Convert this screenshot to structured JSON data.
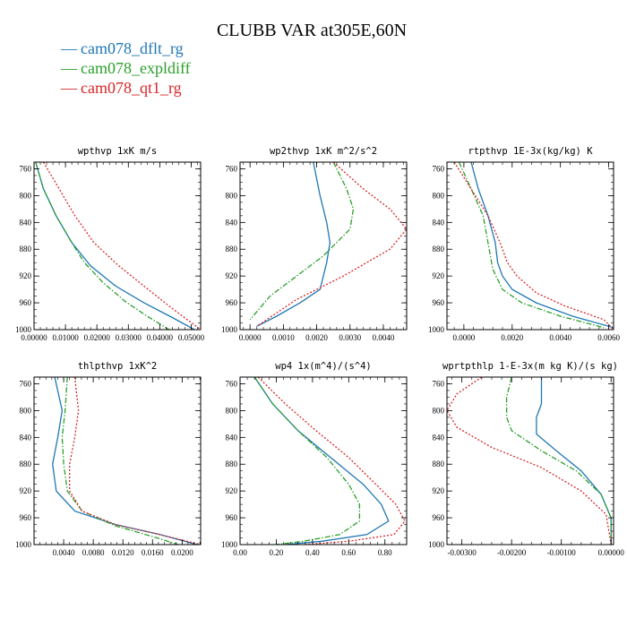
{
  "figure": {
    "title": "CLUBB VAR at305E,60N",
    "legend": [
      {
        "label": "cam078_dflt_rg",
        "color": "#1f77b4"
      },
      {
        "label": "cam078_expldiff",
        "color": "#2ca02c"
      },
      {
        "label": "cam078_qt1_rg",
        "color": "#d62728"
      }
    ]
  },
  "chart_data": [
    {
      "type": "line",
      "title": "wpthvp  1xK m/s",
      "xlim": [
        0,
        0.053
      ],
      "ylim": [
        1000,
        750
      ],
      "xticks": [
        0,
        0.01,
        0.02,
        0.03,
        0.04,
        0.05
      ],
      "xtick_labels": [
        "0.00000",
        "0.01000",
        "0.02000",
        "0.03000",
        "0.04000",
        "0.05000"
      ],
      "yticks": [
        760,
        800,
        840,
        880,
        920,
        960,
        1000
      ],
      "ytick_labels": [
        "760",
        "800",
        "840",
        "880",
        "920",
        "960",
        "1000"
      ],
      "series": [
        {
          "color": "#1f77b4",
          "dash": "",
          "x": [
            0.0005,
            0.003,
            0.007,
            0.012,
            0.018,
            0.026,
            0.035,
            0.044,
            0.051
          ],
          "y": [
            750,
            790,
            830,
            870,
            905,
            935,
            960,
            982,
            1000
          ]
        },
        {
          "color": "#2ca02c",
          "dash": "6,2,1.5,2",
          "x": [
            0.0005,
            0.003,
            0.007,
            0.012,
            0.016,
            0.022,
            0.029,
            0.036,
            0.043
          ],
          "y": [
            750,
            790,
            830,
            870,
            900,
            930,
            958,
            980,
            1000
          ]
        },
        {
          "color": "#d62728",
          "dash": "2,2",
          "x": [
            0.003,
            0.008,
            0.013,
            0.019,
            0.027,
            0.035,
            0.043,
            0.053
          ],
          "y": [
            750,
            790,
            830,
            870,
            905,
            935,
            965,
            1000
          ]
        }
      ]
    },
    {
      "type": "line",
      "title": "wp2thvp  1xK m^2/s^2",
      "xlim": [
        -0.0003,
        0.0047
      ],
      "ylim": [
        1000,
        750
      ],
      "xticks": [
        0,
        0.001,
        0.002,
        0.003,
        0.004
      ],
      "xtick_labels": [
        "0.0000",
        "0.0010",
        "0.0020",
        "0.0030",
        "0.0040"
      ],
      "yticks": [
        760,
        800,
        840,
        880,
        920,
        960,
        1000
      ],
      "ytick_labels": [
        "760",
        "800",
        "840",
        "880",
        "920",
        "960",
        "1000"
      ],
      "series": [
        {
          "color": "#1f77b4",
          "dash": "",
          "x": [
            0.0019,
            0.0021,
            0.0023,
            0.0024,
            0.0023,
            0.0021,
            0.0015,
            0.0008,
            0.0002
          ],
          "y": [
            750,
            800,
            840,
            870,
            900,
            940,
            960,
            980,
            995
          ]
        },
        {
          "color": "#2ca02c",
          "dash": "6,2,1.5,2",
          "x": [
            0.0025,
            0.0029,
            0.0031,
            0.003,
            0.0022,
            0.0014,
            0.0006,
            0.0
          ],
          "y": [
            750,
            790,
            820,
            850,
            890,
            920,
            950,
            985
          ]
        },
        {
          "color": "#d62728",
          "dash": "2,2",
          "x": [
            0.0025,
            0.0034,
            0.0042,
            0.0047,
            0.0042,
            0.0028,
            0.0014,
            0.0002
          ],
          "y": [
            750,
            790,
            820,
            850,
            880,
            920,
            955,
            995
          ]
        }
      ]
    },
    {
      "type": "line",
      "title": "rtpthvp  1E-3x(kg/kg) K",
      "xlim": [
        -0.0007,
        0.0062
      ],
      "ylim": [
        1000,
        750
      ],
      "xticks": [
        0,
        0.002,
        0.004,
        0.006
      ],
      "xtick_labels": [
        "0.0000",
        "0.0020",
        "0.0040",
        "0.0060"
      ],
      "yticks": [
        760,
        800,
        840,
        880,
        920,
        960,
        1000
      ],
      "ytick_labels": [
        "760",
        "800",
        "840",
        "880",
        "920",
        "960",
        "1000"
      ],
      "series": [
        {
          "color": "#1f77b4",
          "dash": "",
          "x": [
            0.0003,
            0.0006,
            0.001,
            0.0013,
            0.0014,
            0.0016,
            0.002,
            0.003,
            0.0045,
            0.0062
          ],
          "y": [
            750,
            790,
            830,
            870,
            900,
            920,
            940,
            960,
            980,
            997
          ]
        },
        {
          "color": "#2ca02c",
          "dash": "6,2,1.5,2",
          "x": [
            -0.0002,
            0.0003,
            0.0008,
            0.001,
            0.0012,
            0.0016,
            0.0024,
            0.004,
            0.0058
          ],
          "y": [
            750,
            790,
            830,
            870,
            910,
            940,
            960,
            980,
            997
          ]
        },
        {
          "color": "#d62728",
          "dash": "2,2",
          "x": [
            -0.0004,
            0.0003,
            0.001,
            0.0015,
            0.0018,
            0.0022,
            0.003,
            0.0042,
            0.0058,
            0.0062
          ],
          "y": [
            750,
            790,
            830,
            870,
            900,
            920,
            945,
            965,
            985,
            1000
          ]
        }
      ]
    },
    {
      "type": "line",
      "title": "thlpthvp  1xK^2",
      "xlim": [
        0.0,
        0.0225
      ],
      "ylim": [
        1000,
        750
      ],
      "xticks": [
        0.004,
        0.008,
        0.012,
        0.016,
        0.02
      ],
      "xtick_labels": [
        "0.0040",
        "0.0080",
        "0.0120",
        "0.0160",
        "0.0200"
      ],
      "yticks": [
        760,
        800,
        840,
        880,
        920,
        960,
        1000
      ],
      "ytick_labels": [
        "760",
        "800",
        "840",
        "880",
        "920",
        "960",
        "1000"
      ],
      "series": [
        {
          "color": "#1f77b4",
          "dash": "",
          "x": [
            0.0028,
            0.0038,
            0.0032,
            0.0025,
            0.003,
            0.0055,
            0.011,
            0.017,
            0.022
          ],
          "y": [
            750,
            800,
            840,
            880,
            920,
            950,
            970,
            985,
            1000
          ]
        },
        {
          "color": "#2ca02c",
          "dash": "6,2,1.5,2",
          "x": [
            0.0045,
            0.0042,
            0.0038,
            0.004,
            0.0045,
            0.0065,
            0.011,
            0.016,
            0.0195
          ],
          "y": [
            750,
            800,
            840,
            880,
            920,
            950,
            972,
            988,
            1000
          ]
        },
        {
          "color": "#d62728",
          "dash": "2,2",
          "x": [
            0.0055,
            0.006,
            0.0055,
            0.0048,
            0.0048,
            0.0065,
            0.011,
            0.017,
            0.0225
          ],
          "y": [
            750,
            800,
            840,
            880,
            920,
            950,
            970,
            985,
            1000
          ]
        }
      ]
    },
    {
      "type": "line",
      "title": "wp4  1x(m^4)/(s^4)",
      "xlim": [
        0,
        0.92
      ],
      "ylim": [
        1000,
        750
      ],
      "xticks": [
        0,
        0.2,
        0.4,
        0.6,
        0.8
      ],
      "xtick_labels": [
        "0.00",
        "0.20",
        "0.40",
        "0.60",
        "0.80"
      ],
      "yticks": [
        760,
        800,
        840,
        880,
        920,
        960,
        1000
      ],
      "ytick_labels": [
        "760",
        "800",
        "840",
        "880",
        "920",
        "960",
        "1000"
      ],
      "series": [
        {
          "color": "#1f77b4",
          "dash": "",
          "x": [
            0.08,
            0.18,
            0.32,
            0.5,
            0.68,
            0.78,
            0.82,
            0.7,
            0.45,
            0.25
          ],
          "y": [
            750,
            790,
            830,
            870,
            910,
            940,
            965,
            985,
            995,
            1000
          ]
        },
        {
          "color": "#2ca02c",
          "dash": "6,2,1.5,2",
          "x": [
            0.08,
            0.18,
            0.32,
            0.48,
            0.6,
            0.66,
            0.66,
            0.55,
            0.35,
            0.2
          ],
          "y": [
            750,
            790,
            830,
            870,
            910,
            940,
            965,
            985,
            995,
            1000
          ]
        },
        {
          "color": "#d62728",
          "dash": "2,2",
          "x": [
            0.1,
            0.25,
            0.42,
            0.6,
            0.75,
            0.86,
            0.91,
            0.85,
            0.6,
            0.35
          ],
          "y": [
            750,
            790,
            830,
            870,
            910,
            940,
            965,
            985,
            995,
            1000
          ]
        }
      ]
    },
    {
      "type": "line",
      "title": "wprtpthlp  1-E-3x(m kg K)/(s kg)",
      "xlim": [
        -0.0033,
        5e-05
      ],
      "ylim": [
        1000,
        750
      ],
      "xticks": [
        -0.003,
        -0.002,
        -0.001,
        0.0
      ],
      "xtick_labels": [
        "-0.00300",
        "-0.00200",
        "-0.00100",
        "0.00000"
      ],
      "yticks": [
        760,
        800,
        840,
        880,
        920,
        960,
        1000
      ],
      "ytick_labels": [
        "760",
        "800",
        "840",
        "880",
        "920",
        "960",
        "1000"
      ],
      "series": [
        {
          "color": "#1f77b4",
          "dash": "",
          "x": [
            -0.0014,
            -0.0014,
            -0.0015,
            -0.0015,
            -0.0011,
            -0.0006,
            -0.0002,
            0.0,
            0.0
          ],
          "y": [
            750,
            790,
            810,
            835,
            860,
            890,
            925,
            960,
            1000
          ]
        },
        {
          "color": "#2ca02c",
          "dash": "6,2,1.5,2",
          "x": [
            -0.002,
            -0.0021,
            -0.0021,
            -0.002,
            -0.0014,
            -0.0007,
            -0.0002,
            0.0,
            0.0
          ],
          "y": [
            750,
            780,
            810,
            830,
            860,
            890,
            925,
            960,
            1000
          ]
        },
        {
          "color": "#d62728",
          "dash": "2,2",
          "x": [
            -0.0026,
            -0.0031,
            -0.0033,
            -0.0031,
            -0.0024,
            -0.0014,
            -0.0006,
            -0.0001,
            0.0
          ],
          "y": [
            750,
            775,
            800,
            825,
            855,
            885,
            920,
            955,
            1000
          ]
        }
      ]
    }
  ]
}
